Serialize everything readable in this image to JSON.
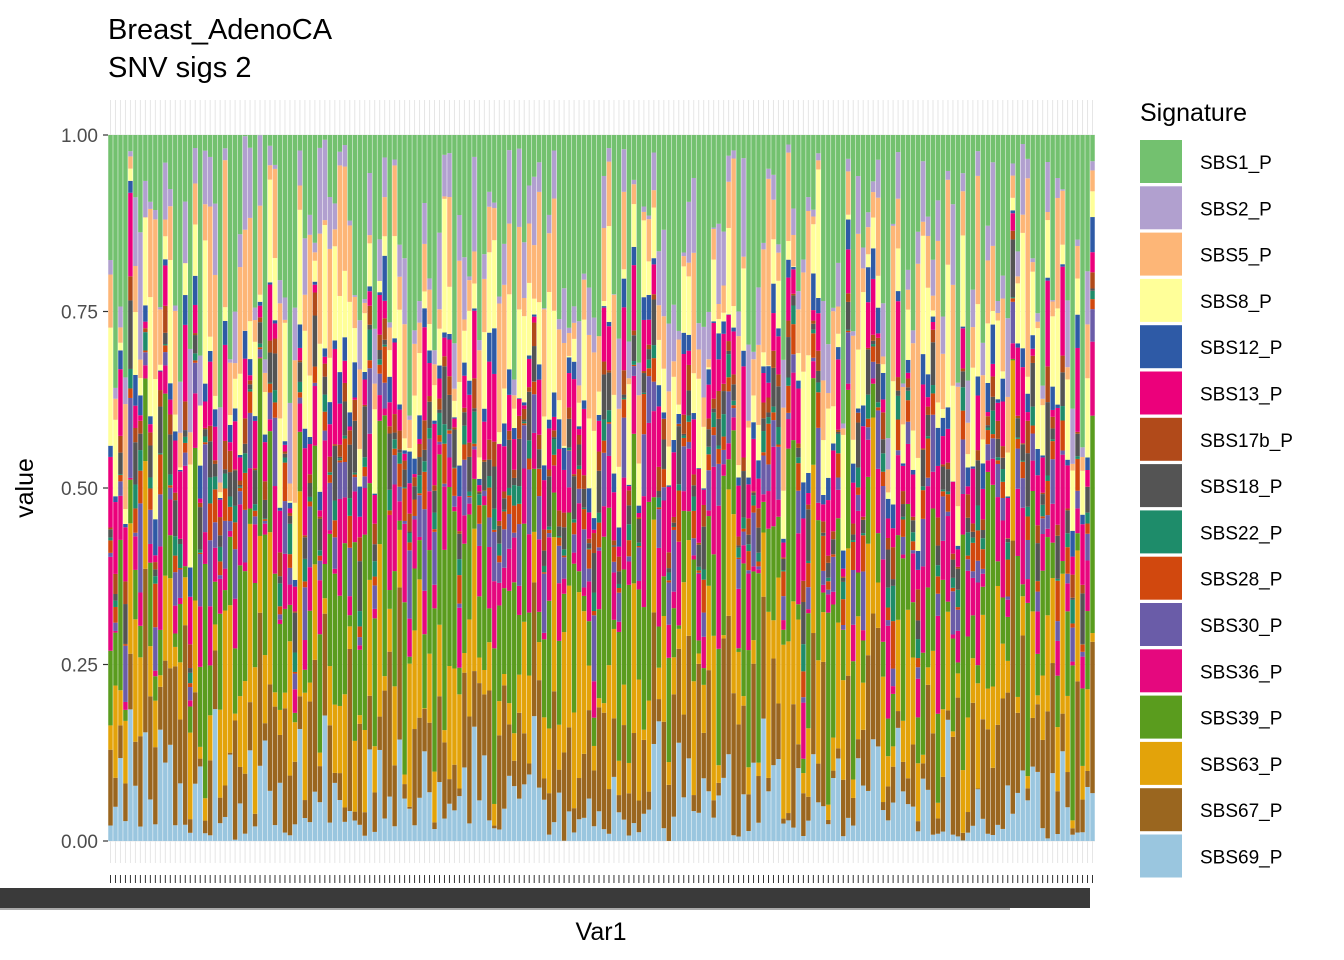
{
  "chart_data": {
    "type": "bar",
    "stacked": true,
    "normalized": true,
    "title": "Breast_AdenoCA",
    "subtitle": "SNV sigs 2",
    "xlabel": "Var1",
    "ylabel": "value",
    "ylim": [
      0,
      1
    ],
    "yticks": [
      "0.00",
      "0.25",
      "0.50",
      "0.75",
      "1.00"
    ],
    "n_samples": 198,
    "x_tick_labels_legible": false,
    "grid": true,
    "legend_position": "right",
    "legend_title": "Signature",
    "signatures": [
      {
        "name": "SBS1_P",
        "color": "#73C16F",
        "mean": 0.16
      },
      {
        "name": "SBS2_P",
        "color": "#B1A0CF",
        "mean": 0.05
      },
      {
        "name": "SBS5_P",
        "color": "#FDB677",
        "mean": 0.08
      },
      {
        "name": "SBS8_P",
        "color": "#FFFF99",
        "mean": 0.07
      },
      {
        "name": "SBS12_P",
        "color": "#2E5AA6",
        "mean": 0.02
      },
      {
        "name": "SBS13_P",
        "color": "#EC007B",
        "mean": 0.05
      },
      {
        "name": "SBS17b_P",
        "color": "#B14A1A",
        "mean": 0.015
      },
      {
        "name": "SBS18_P",
        "color": "#545454",
        "mean": 0.03
      },
      {
        "name": "SBS22_P",
        "color": "#1E8C6A",
        "mean": 0.015
      },
      {
        "name": "SBS28_P",
        "color": "#D1480E",
        "mean": 0.02
      },
      {
        "name": "SBS30_P",
        "color": "#6A5CA8",
        "mean": 0.04
      },
      {
        "name": "SBS36_P",
        "color": "#E5087E",
        "mean": 0.05
      },
      {
        "name": "SBS39_P",
        "color": "#5A9C1E",
        "mean": 0.12
      },
      {
        "name": "SBS63_P",
        "color": "#E3A30A",
        "mean": 0.11
      },
      {
        "name": "SBS67_P",
        "color": "#9A661F",
        "mean": 0.09
      },
      {
        "name": "SBS69_P",
        "color": "#9AC6DF",
        "mean": 0.06
      }
    ],
    "data_note_seed": 7
  }
}
